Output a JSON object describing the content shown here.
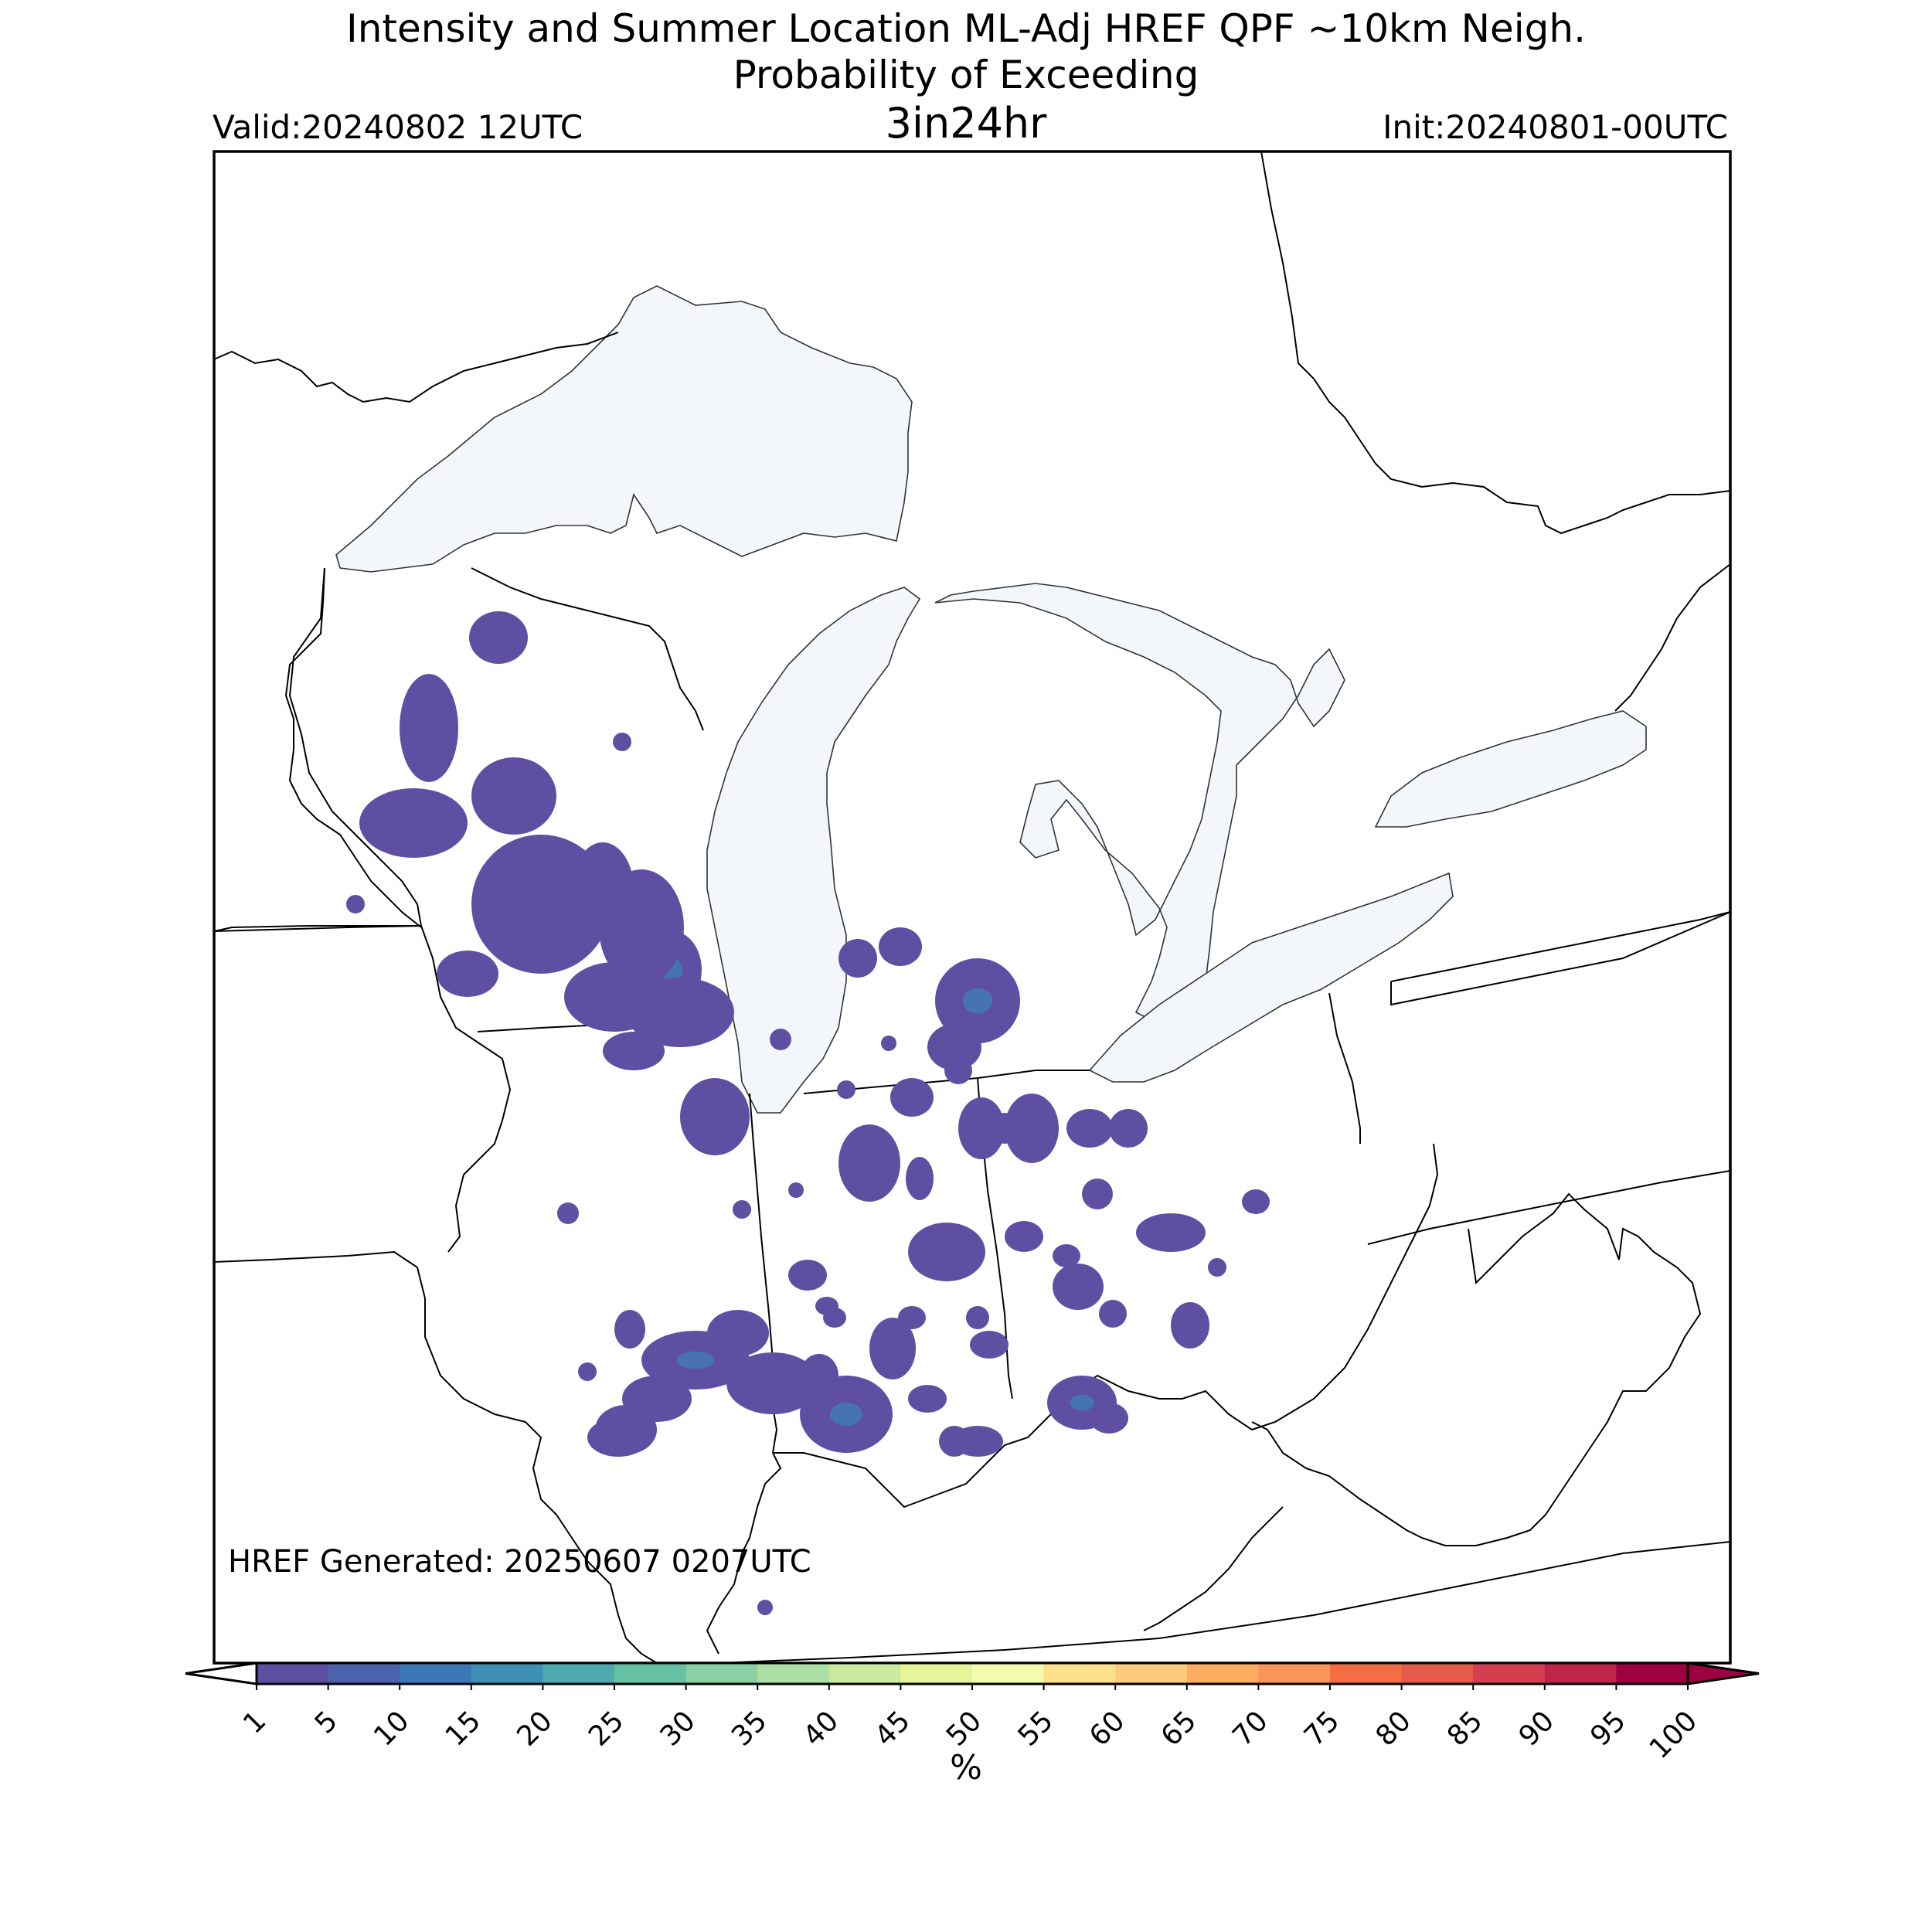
{
  "header": {
    "title_line1": "Intensity and Summer Location ML-Adj HREF QPF ~10km Neigh.",
    "title_line2": "Probability of Exceeding",
    "threshold": "3in24hr",
    "valid": "Valid:20240802 12UTC",
    "init": "Init:20240801-00UTC"
  },
  "footer": {
    "generated": "HREF Generated: 20250607 0207UTC"
  },
  "colorbar": {
    "label": "%",
    "ticks": [
      "1",
      "5",
      "10",
      "15",
      "20",
      "25",
      "30",
      "35",
      "40",
      "45",
      "50",
      "55",
      "60",
      "65",
      "70",
      "75",
      "80",
      "85",
      "90",
      "95",
      "100"
    ],
    "colors": [
      "#5e4fa2",
      "#4d62ad",
      "#3b78b7",
      "#3e91b5",
      "#4fa9b0",
      "#66c2a5",
      "#89d0a4",
      "#acdfa3",
      "#c9eaa0",
      "#e6f598",
      "#f4faae",
      "#fee08b",
      "#fdcb7b",
      "#fdae61",
      "#f99556",
      "#f46d43",
      "#e55a49",
      "#d53e4f",
      "#be2548",
      "#9e0142"
    ],
    "under_color": "#ffffff",
    "over_color": "#9e0142"
  },
  "map": {
    "water_color": "#f3f7fc",
    "cell_color": "#5e4fa2",
    "core_color": "#3f7fb5"
  }
}
